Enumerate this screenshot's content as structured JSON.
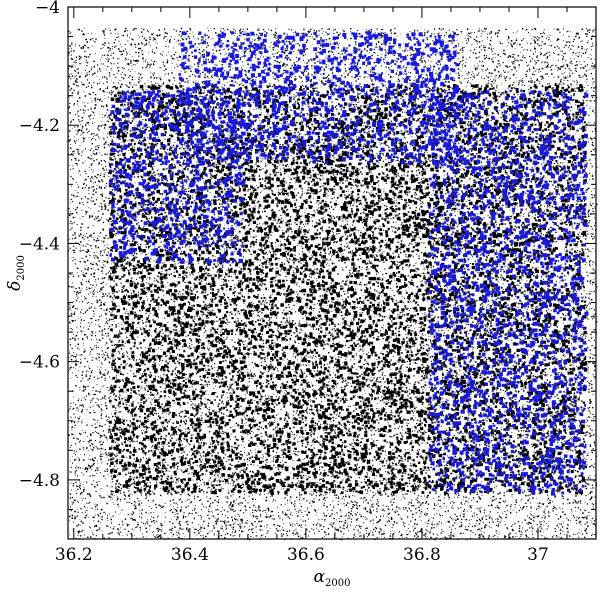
{
  "chart_data": {
    "type": "scatter",
    "title": "",
    "xlabel": {
      "symbol": "α",
      "subscript": "2000"
    },
    "ylabel": {
      "symbol": "δ",
      "subscript": "2000"
    },
    "xlim": [
      36.19,
      37.1
    ],
    "ylim": [
      -4.9,
      -4.0
    ],
    "x_ticks": [
      {
        "value": 36.2,
        "label": "36.2"
      },
      {
        "value": 36.4,
        "label": "36.4"
      },
      {
        "value": 36.6,
        "label": "36.6"
      },
      {
        "value": 36.8,
        "label": "36.8"
      },
      {
        "value": 37.0,
        "label": "37"
      }
    ],
    "y_ticks": [
      {
        "value": -4.0,
        "label": "−4"
      },
      {
        "value": -4.2,
        "label": "−4.2"
      },
      {
        "value": -4.4,
        "label": "−4.4"
      },
      {
        "value": -4.6,
        "label": "−4.6"
      },
      {
        "value": -4.8,
        "label": "−4.8"
      }
    ],
    "grid": false,
    "series": [
      {
        "color": "#000000",
        "marker": "tiny-dot",
        "description_regions": [
          {
            "x": [
              36.19,
              37.1
            ],
            "y": [
              -4.9,
              -4.035
            ],
            "density": "sparse background field"
          }
        ]
      },
      {
        "color": "#000000",
        "marker": "dot",
        "description_regions": [
          {
            "x": [
              36.26,
              37.08
            ],
            "y": [
              -4.82,
              -4.13
            ],
            "density": "dense survey footprint"
          }
        ]
      },
      {
        "color": "#1a1adb",
        "marker": "dot",
        "description_regions": [
          {
            "x": [
              36.38,
              36.86
            ],
            "y": [
              -4.26,
              -4.04
            ]
          },
          {
            "x": [
              36.26,
              36.49
            ],
            "y": [
              -4.43,
              -4.14
            ]
          },
          {
            "x": [
              36.81,
              37.08
            ],
            "y": [
              -4.82,
              -4.14
            ]
          }
        ]
      }
    ]
  }
}
